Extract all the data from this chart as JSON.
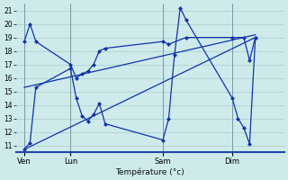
{
  "background_color": "#ceeaea",
  "grid_color": "#aacccc",
  "line_color": "#1133aa",
  "xlabel": "Température (°c)",
  "ylim": [
    10.5,
    21.5
  ],
  "yticks": [
    11,
    12,
    13,
    14,
    15,
    16,
    17,
    18,
    19,
    20,
    21
  ],
  "day_labels": [
    "Ven",
    "Lun",
    "Sam",
    "Dim"
  ],
  "day_positions": [
    0.5,
    4.5,
    12.5,
    18.5
  ],
  "xlim": [
    -0.2,
    23.0
  ],
  "series_wavy_x": [
    0.5,
    1.0,
    1.5,
    4.5,
    5.0,
    5.5,
    6.0,
    6.5,
    7.0,
    7.5,
    12.5,
    13.0,
    13.5,
    14.0,
    14.5,
    18.5,
    19.0,
    19.5,
    20.0,
    20.5
  ],
  "series_wavy_y": [
    10.7,
    11.2,
    15.3,
    16.7,
    14.5,
    13.2,
    12.8,
    13.3,
    14.1,
    12.6,
    11.4,
    13.0,
    17.7,
    21.2,
    20.3,
    14.5,
    13.0,
    12.3,
    11.1,
    19.0
  ],
  "series_flat_x": [
    0.5,
    1.0,
    1.5,
    4.5,
    5.0,
    5.5,
    6.0,
    6.5,
    7.0,
    7.5,
    12.5,
    13.0,
    14.5,
    18.5,
    19.5,
    20.0,
    20.5
  ],
  "series_flat_y": [
    18.7,
    20.0,
    18.7,
    17.0,
    16.0,
    16.3,
    16.5,
    17.0,
    18.0,
    18.2,
    18.7,
    18.5,
    19.0,
    19.0,
    19.0,
    17.3,
    19.0
  ],
  "trend1_x": [
    0.5,
    20.5
  ],
  "trend1_y": [
    15.3,
    19.2
  ],
  "trend2_x": [
    0.5,
    20.5
  ],
  "trend2_y": [
    10.7,
    19.0
  ]
}
